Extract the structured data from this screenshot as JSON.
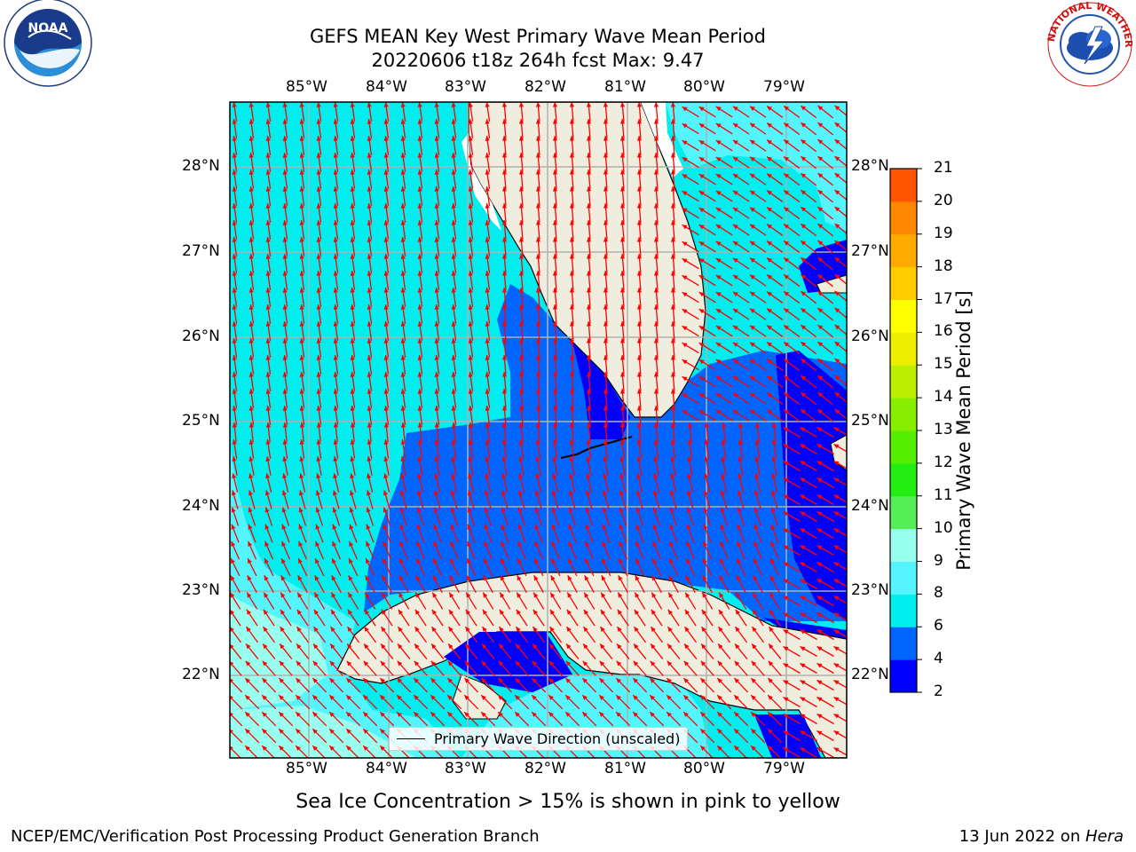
{
  "header": {
    "title_line1": "GEFS MEAN Key West Primary Wave Mean Period",
    "title_line2": "20220606 t18z 264h fcst   Max: 9.47"
  },
  "logos": {
    "left": {
      "name": "NOAA",
      "ring_text": "NATIONAL OCEANIC AND ATMOSPHERIC ADMINISTRATION · U.S. DEPARTMENT OF COMMERCE"
    },
    "right": {
      "name": "NATIONAL WEATHER SERVICE"
    }
  },
  "map": {
    "lon_labels": [
      "85°W",
      "84°W",
      "83°W",
      "82°W",
      "81°W",
      "80°W",
      "79°W"
    ],
    "lat_labels": [
      "28°N",
      "27°N",
      "26°N",
      "25°N",
      "24°N",
      "23°N",
      "22°N"
    ],
    "legend_label": "Primary Wave Direction (unscaled)",
    "arrow_color": "#ff0000"
  },
  "colorbar": {
    "label": "Primary Wave Mean Period [s]",
    "ticks": [
      "2",
      "4",
      "6",
      "8",
      "9",
      "10",
      "11",
      "12",
      "13",
      "14",
      "15",
      "16",
      "17",
      "18",
      "19",
      "20",
      "21"
    ],
    "colors": [
      "#0000ff",
      "#0066ff",
      "#00eeee",
      "#55f5ff",
      "#99ffee",
      "#55ee55",
      "#22ee11",
      "#55ee00",
      "#88ee00",
      "#bbee00",
      "#eeee00",
      "#ffff00",
      "#ffcc00",
      "#ffaa00",
      "#ff8800",
      "#ff5500",
      "#ff2200",
      "#ff0000"
    ]
  },
  "notes": {
    "sea_ice": "Sea Ice Concentration > 15% is shown in pink to yellow"
  },
  "footer": {
    "left": "NCEP/EMC/Verification Post Processing Product Generation Branch",
    "right_date": "13 Jun 2022 on ",
    "right_host": "Hera"
  }
}
